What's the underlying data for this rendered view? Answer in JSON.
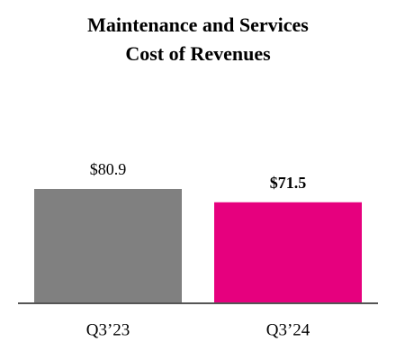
{
  "chart_data": {
    "type": "bar",
    "title": [
      "Maintenance and Services",
      "Cost of Revenues"
    ],
    "categories": [
      "Q3’23",
      "Q3’24"
    ],
    "values": [
      80.9,
      71.5
    ],
    "value_labels": [
      "$80.9",
      "$71.5"
    ],
    "colors": [
      "#808080",
      "#e6007e"
    ]
  }
}
